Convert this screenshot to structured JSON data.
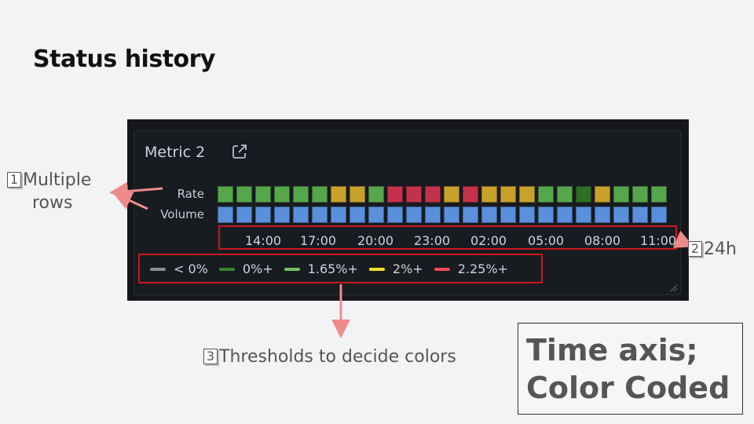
{
  "slide": {
    "title": "Status history"
  },
  "panel": {
    "title": "Metric 2",
    "icon": "external-link-icon",
    "rows": [
      {
        "label": "Rate",
        "cells": [
          "green",
          "green",
          "green",
          "green",
          "green",
          "green",
          "yellow",
          "yellow",
          "green",
          "red",
          "red",
          "red",
          "yellow",
          "red",
          "yellow",
          "yellow",
          "yellow",
          "green",
          "green",
          "darkgreen",
          "yellow",
          "green",
          "green",
          "green"
        ]
      },
      {
        "label": "Volume",
        "cells": [
          "blue",
          "blue",
          "blue",
          "blue",
          "blue",
          "blue",
          "blue",
          "blue",
          "blue",
          "blue",
          "blue",
          "blue",
          "blue",
          "blue",
          "blue",
          "blue",
          "blue",
          "blue",
          "blue",
          "blue",
          "blue",
          "blue",
          "blue",
          "blue"
        ]
      }
    ],
    "time_ticks": [
      "14:00",
      "17:00",
      "20:00",
      "23:00",
      "02:00",
      "05:00",
      "08:00",
      "11:00"
    ],
    "legend": [
      {
        "label": "< 0%",
        "color": "#8e8e8e"
      },
      {
        "label": "0%+",
        "color": "#37872d"
      },
      {
        "label": "1.65%+",
        "color": "#73bf69"
      },
      {
        "label": "2%+",
        "color": "#fade2a"
      },
      {
        "label": "2.25%+",
        "color": "#f2495c"
      }
    ],
    "cell_colors": {
      "green": "#56a64b",
      "darkgreen": "#2d6d24",
      "yellow": "#c8a12b",
      "red": "#c4314b",
      "blue": "#5a8fdb"
    }
  },
  "annotations": {
    "a1": {
      "num": "1",
      "text": "Multiple",
      "text2": "rows"
    },
    "a2": {
      "num": "2",
      "text": "24h"
    },
    "a3": {
      "num": "3",
      "text": "Thresholds to decide colors"
    }
  },
  "callout": {
    "line1": "Time axis;",
    "line2": "Color Coded"
  }
}
